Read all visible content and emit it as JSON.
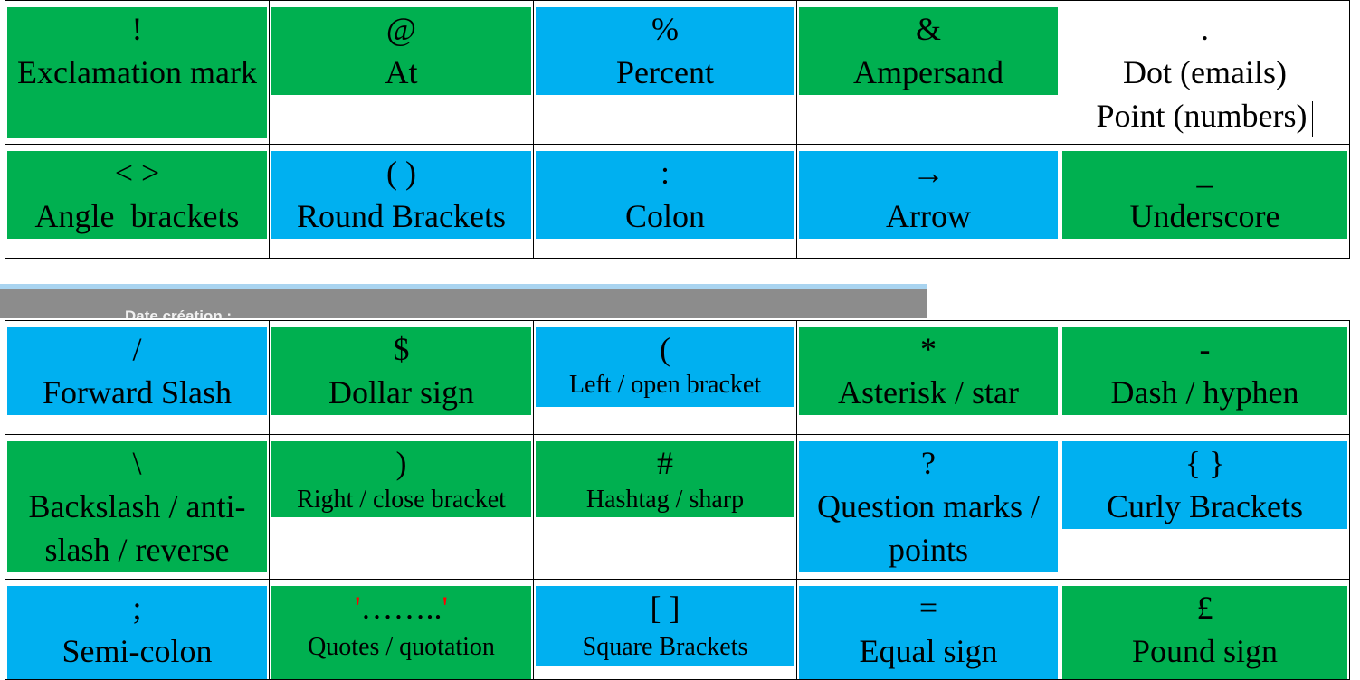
{
  "table1": [
    [
      {
        "symbol": "!",
        "label": "Exclamation mark",
        "color": "green"
      },
      {
        "symbol": "@",
        "label": "At",
        "color": "green"
      },
      {
        "symbol": "%",
        "label": "Percent",
        "color": "blue"
      },
      {
        "symbol": "&",
        "label": "Ampersand",
        "color": "green"
      },
      {
        "symbol": ".",
        "label": "Dot (emails)",
        "label2": "Point (numbers)",
        "color": "none"
      }
    ],
    [
      {
        "symbol": "< >",
        "label": "Angle  brackets",
        "color": "green"
      },
      {
        "symbol": "( )",
        "label": "Round Brackets",
        "color": "blue"
      },
      {
        "symbol": ":",
        "label": "Colon",
        "color": "blue"
      },
      {
        "symbol": "→",
        "label": "Arrow",
        "color": "blue"
      },
      {
        "symbol": "_",
        "label": "Underscore",
        "color": "green"
      }
    ]
  ],
  "divider_text": "Date création :",
  "table2": [
    [
      {
        "symbol": "/",
        "label": "Forward Slash",
        "color": "blue"
      },
      {
        "symbol": "$",
        "label": "Dollar sign",
        "color": "green"
      },
      {
        "symbol": "(",
        "label": "Left / open bracket",
        "color": "blue"
      },
      {
        "symbol": "*",
        "label": "Asterisk / star",
        "color": "green"
      },
      {
        "symbol": "-",
        "label": "Dash / hyphen",
        "color": "green"
      }
    ],
    [
      {
        "symbol": "\\",
        "label": "Backslash / anti-slash / reverse",
        "color": "green"
      },
      {
        "symbol": ")",
        "label": "Right / close bracket",
        "color": "green"
      },
      {
        "symbol": "#",
        "label": "Hashtag / sharp",
        "color": "green"
      },
      {
        "symbol": "?",
        "label": "Question marks / points",
        "color": "blue"
      },
      {
        "symbol": "{ }",
        "label": "Curly Brackets",
        "color": "blue"
      }
    ],
    [
      {
        "symbol": ";",
        "label": "Semi-colon",
        "color": "blue"
      },
      {
        "symbol_quote_open": "'",
        "symbol": "……..",
        "symbol_quote_close": "'",
        "label": "Quotes / quotation",
        "color": "green"
      },
      {
        "symbol": "[ ]",
        "label": "Square Brackets",
        "color": "blue"
      },
      {
        "symbol": "=",
        "label": "Equal sign",
        "color": "blue"
      },
      {
        "symbol": "£",
        "label": "Pound sign",
        "color": "green"
      }
    ]
  ],
  "colors": {
    "green": "#00b050",
    "blue": "#00b0f0"
  }
}
